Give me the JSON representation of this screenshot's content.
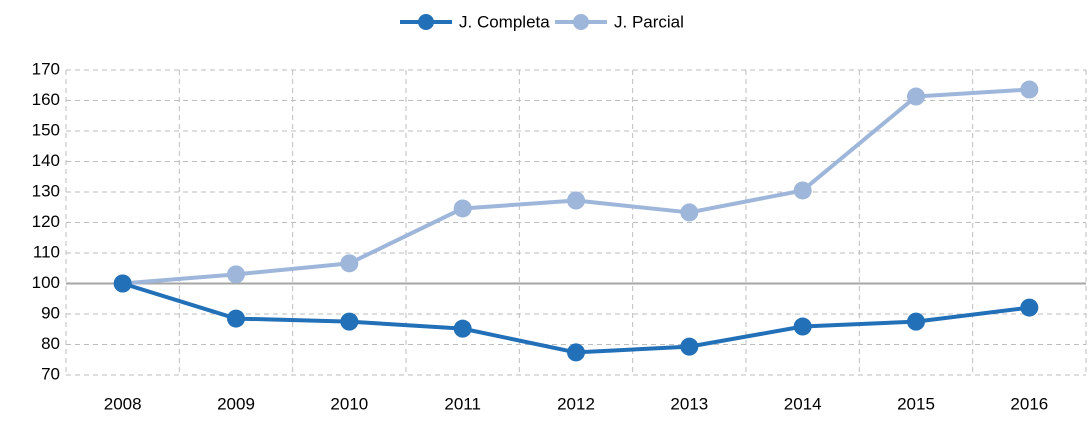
{
  "chart_data": {
    "type": "line",
    "categories": [
      "2008",
      "2009",
      "2010",
      "2011",
      "2012",
      "2013",
      "2014",
      "2015",
      "2016"
    ],
    "series": [
      {
        "name": "J. Completa",
        "color": "#2270b8",
        "values": [
          100,
          88.5,
          87.5,
          85.2,
          77.4,
          79.3,
          85.9,
          87.5,
          92.1
        ]
      },
      {
        "name": "J. Parcial",
        "color": "#9db6da",
        "values": [
          100,
          103,
          106.6,
          124.6,
          127.2,
          123.3,
          130.5,
          161.3,
          163.6
        ]
      }
    ],
    "ylim": [
      70,
      170
    ],
    "yticks": [
      70,
      80,
      90,
      100,
      110,
      120,
      130,
      140,
      150,
      160,
      170
    ],
    "grid": true,
    "axis_crosses_at": 100,
    "legend": "top"
  }
}
